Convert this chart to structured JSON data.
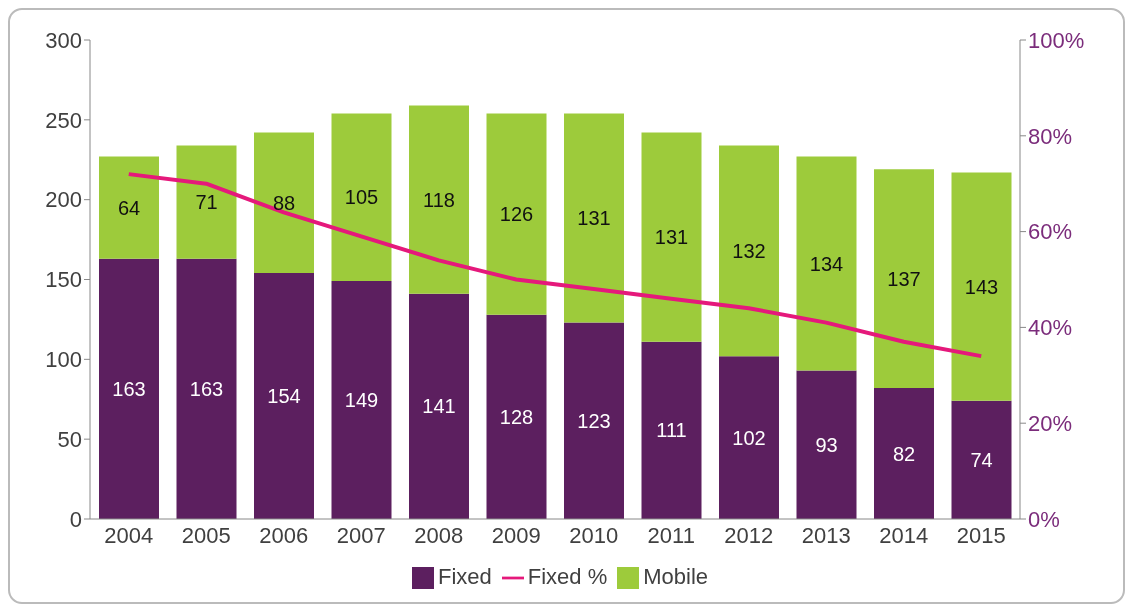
{
  "chart_data": {
    "type": "bar",
    "stacked": true,
    "legend": "bottom",
    "categories": [
      "2004",
      "2005",
      "2006",
      "2007",
      "2008",
      "2009",
      "2010",
      "2011",
      "2012",
      "2013",
      "2014",
      "2015"
    ],
    "series": [
      {
        "name": "Fixed",
        "color": "#5c1f5f",
        "values": [
          163,
          163,
          154,
          149,
          141,
          128,
          123,
          111,
          102,
          93,
          82,
          74
        ],
        "value_labels": [
          "163",
          "163",
          "154",
          "149",
          "141",
          "128",
          "123",
          "111",
          "102",
          "93",
          "82",
          "74"
        ]
      },
      {
        "name": "Mobile",
        "color": "#9dcb3b",
        "values": [
          64,
          71,
          88,
          105,
          118,
          126,
          131,
          131,
          132,
          134,
          137,
          143
        ],
        "value_labels": [
          "64",
          "71",
          "88",
          "105",
          "118",
          "126",
          "131",
          "131",
          "132",
          "134",
          "137",
          "143"
        ]
      },
      {
        "name": "Fixed %",
        "type": "line",
        "axis": "y2",
        "color": "#e5197b",
        "marker": "none",
        "line_style": "solid",
        "values": [
          72,
          70,
          64,
          59,
          54,
          50,
          48,
          46,
          44,
          41,
          37,
          34
        ]
      }
    ],
    "ylim": [
      0,
      300
    ],
    "yticks": [
      0,
      50,
      100,
      150,
      200,
      250,
      300
    ],
    "y2lim": [
      0,
      100
    ],
    "y2ticks": [
      {
        "value": 0,
        "label": "0%"
      },
      {
        "value": 20,
        "label": "20%"
      },
      {
        "value": 40,
        "label": "40%"
      },
      {
        "value": 60,
        "label": "60%"
      },
      {
        "value": 80,
        "label": "80%"
      },
      {
        "value": 100,
        "label": "100%"
      }
    ]
  }
}
